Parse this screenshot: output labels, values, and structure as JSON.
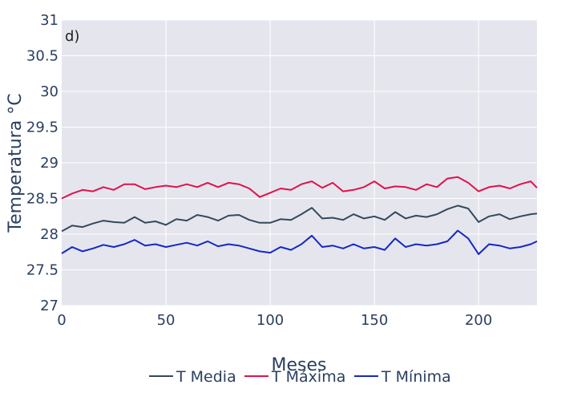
{
  "chart_data": {
    "type": "line",
    "panel_label": "d)",
    "xlabel": "Meses",
    "ylabel": "Temperatura °C",
    "xlim": [
      0,
      228
    ],
    "ylim": [
      27,
      31
    ],
    "x_ticks": [
      0,
      50,
      100,
      150,
      200
    ],
    "y_ticks": [
      "27",
      "27.5",
      "28",
      "28.5",
      "29",
      "29.5",
      "30",
      "30.5",
      "31"
    ],
    "grid": true,
    "legend_position": "bottom-center",
    "colors": {
      "plot_bg": "#e5e6ed",
      "grid": "#ffffff"
    },
    "series": [
      {
        "name": "T Media",
        "color": "#34495e",
        "x": [
          0,
          5,
          10,
          15,
          20,
          25,
          30,
          35,
          40,
          45,
          50,
          55,
          60,
          65,
          70,
          75,
          80,
          85,
          90,
          95,
          100,
          105,
          110,
          115,
          120,
          125,
          130,
          135,
          140,
          145,
          150,
          155,
          160,
          165,
          170,
          175,
          180,
          185,
          190,
          195,
          200,
          205,
          210,
          215,
          220,
          225,
          228
        ],
        "values": [
          28.04,
          28.12,
          28.1,
          28.15,
          28.19,
          28.17,
          28.16,
          28.24,
          28.16,
          28.18,
          28.13,
          28.21,
          28.19,
          28.27,
          28.24,
          28.19,
          28.26,
          28.27,
          28.2,
          28.16,
          28.16,
          28.21,
          28.2,
          28.28,
          28.37,
          28.22,
          28.23,
          28.2,
          28.28,
          28.22,
          28.25,
          28.2,
          28.31,
          28.22,
          28.26,
          28.24,
          28.28,
          28.35,
          28.4,
          28.36,
          28.17,
          28.25,
          28.28,
          28.21,
          28.25,
          28.28,
          28.29
        ]
      },
      {
        "name": "T Máxima",
        "color": "#e0124a",
        "x": [
          0,
          5,
          10,
          15,
          20,
          25,
          30,
          35,
          40,
          45,
          50,
          55,
          60,
          65,
          70,
          75,
          80,
          85,
          90,
          95,
          100,
          105,
          110,
          115,
          120,
          125,
          130,
          135,
          140,
          145,
          150,
          155,
          160,
          165,
          170,
          175,
          180,
          185,
          190,
          195,
          200,
          205,
          210,
          215,
          220,
          225,
          228
        ],
        "values": [
          28.5,
          28.57,
          28.62,
          28.6,
          28.66,
          28.62,
          28.7,
          28.7,
          28.63,
          28.66,
          28.68,
          28.66,
          28.7,
          28.66,
          28.72,
          28.66,
          28.72,
          28.7,
          28.64,
          28.52,
          28.58,
          28.64,
          28.62,
          28.7,
          28.74,
          28.65,
          28.72,
          28.6,
          28.62,
          28.66,
          28.74,
          28.64,
          28.67,
          28.66,
          28.62,
          28.7,
          28.66,
          28.78,
          28.8,
          28.72,
          28.6,
          28.66,
          28.68,
          28.64,
          28.7,
          28.74,
          28.65
        ]
      },
      {
        "name": "T Mínima",
        "color": "#1428c8",
        "x": [
          0,
          5,
          10,
          15,
          20,
          25,
          30,
          35,
          40,
          45,
          50,
          55,
          60,
          65,
          70,
          75,
          80,
          85,
          90,
          95,
          100,
          105,
          110,
          115,
          120,
          125,
          130,
          135,
          140,
          145,
          150,
          155,
          160,
          165,
          170,
          175,
          180,
          185,
          190,
          195,
          200,
          205,
          210,
          215,
          220,
          225,
          228
        ],
        "values": [
          27.73,
          27.82,
          27.76,
          27.8,
          27.85,
          27.82,
          27.86,
          27.92,
          27.84,
          27.86,
          27.82,
          27.85,
          27.88,
          27.84,
          27.9,
          27.83,
          27.86,
          27.84,
          27.8,
          27.76,
          27.74,
          27.82,
          27.78,
          27.86,
          27.98,
          27.82,
          27.84,
          27.8,
          27.86,
          27.8,
          27.82,
          27.78,
          27.94,
          27.82,
          27.86,
          27.84,
          27.86,
          27.9,
          28.05,
          27.94,
          27.72,
          27.86,
          27.84,
          27.8,
          27.82,
          27.86,
          27.9
        ]
      }
    ]
  }
}
